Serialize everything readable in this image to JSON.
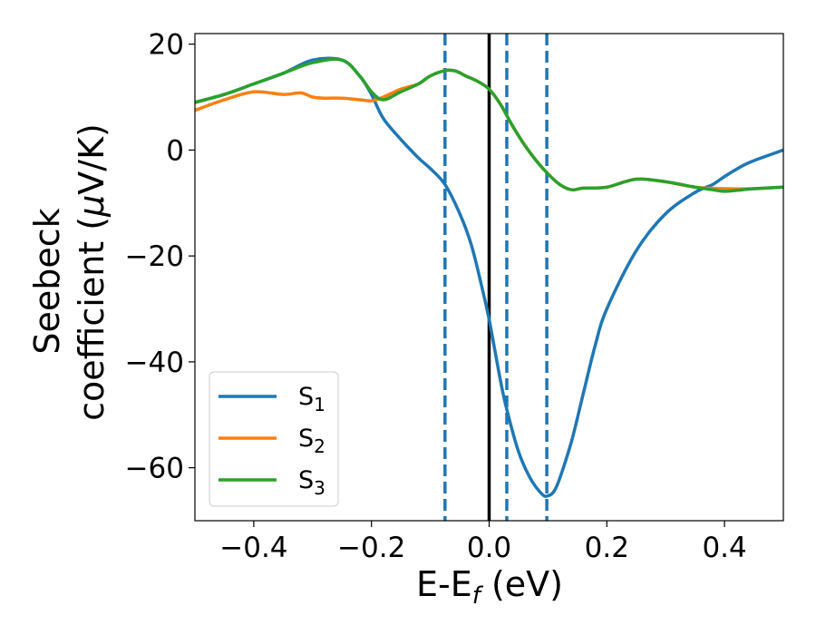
{
  "chart_data": {
    "type": "line",
    "xlabel": {
      "main": "E-E",
      "sub": "f",
      "unit": " (eV)"
    },
    "ylabel": {
      "line1": "Seebeck",
      "line2_prefix": "coefficient  (",
      "mu": "μ",
      "line2_suffix": "V/K)"
    },
    "xlim": [
      -0.5,
      0.5
    ],
    "ylim": [
      -70,
      22
    ],
    "xticks": [
      -0.4,
      -0.2,
      0.0,
      0.2,
      0.4
    ],
    "xtick_labels": [
      "−0.4",
      "−0.2",
      "0.0",
      "0.2",
      "0.4"
    ],
    "yticks": [
      -60,
      -40,
      -20,
      0,
      20
    ],
    "ytick_labels": [
      "−60",
      "−40",
      "−20",
      "0",
      "20"
    ],
    "vlines_solid": [
      {
        "x": 0.0,
        "color": "#000000"
      }
    ],
    "vlines_dashed": [
      {
        "x": -0.075,
        "color": "#1f77b4"
      },
      {
        "x": 0.03,
        "color": "#1f77b4"
      },
      {
        "x": 0.098,
        "color": "#1f77b4"
      }
    ],
    "legend_position": "lower-left",
    "series": [
      {
        "name": "S",
        "subscript": "1",
        "color": "#1f77b4",
        "x": [
          -0.5,
          -0.45,
          -0.4,
          -0.35,
          -0.3,
          -0.25,
          -0.22,
          -0.2,
          -0.18,
          -0.15,
          -0.12,
          -0.1,
          -0.075,
          -0.05,
          -0.03,
          -0.01,
          0.0,
          0.01,
          0.02,
          0.03,
          0.05,
          0.07,
          0.09,
          0.1,
          0.11,
          0.12,
          0.14,
          0.16,
          0.18,
          0.2,
          0.25,
          0.3,
          0.35,
          0.38,
          0.4,
          0.43,
          0.45,
          0.5
        ],
        "y": [
          9,
          10.5,
          12.5,
          14.5,
          17,
          17,
          14,
          10.5,
          6,
          2,
          -1.5,
          -3.5,
          -6.5,
          -12,
          -18,
          -27,
          -32,
          -38,
          -44,
          -49,
          -57,
          -62,
          -65,
          -65.3,
          -64.5,
          -62,
          -55,
          -46,
          -37,
          -30,
          -19,
          -12,
          -8,
          -6.5,
          -5,
          -3,
          -2,
          0
        ]
      },
      {
        "name": "S",
        "subscript": "2",
        "color": "#ff7f0e",
        "x": [
          -0.5,
          -0.45,
          -0.4,
          -0.35,
          -0.32,
          -0.3,
          -0.28,
          -0.25,
          -0.22,
          -0.2,
          -0.18,
          -0.15,
          -0.12,
          -0.1,
          -0.075,
          -0.06,
          -0.05,
          -0.04,
          -0.02,
          0.0,
          0.02,
          0.04,
          0.06,
          0.08,
          0.1,
          0.12,
          0.14,
          0.16,
          0.2,
          0.25,
          0.3,
          0.35,
          0.4,
          0.45,
          0.5
        ],
        "y": [
          7.5,
          9.5,
          11,
          10.5,
          10.8,
          10,
          9.8,
          9.8,
          9.5,
          9.3,
          10,
          11.5,
          12.5,
          14,
          15,
          15,
          14.6,
          14,
          13,
          11.5,
          8.5,
          4.5,
          1,
          -2,
          -4.5,
          -6.5,
          -7.5,
          -7.2,
          -7,
          -5.5,
          -6,
          -7,
          -7.3,
          -7.3,
          -7
        ]
      },
      {
        "name": "S",
        "subscript": "3",
        "color": "#2ca02c",
        "x": [
          -0.5,
          -0.45,
          -0.4,
          -0.35,
          -0.3,
          -0.25,
          -0.22,
          -0.2,
          -0.18,
          -0.15,
          -0.12,
          -0.1,
          -0.075,
          -0.06,
          -0.05,
          -0.04,
          -0.02,
          0.0,
          0.02,
          0.04,
          0.06,
          0.08,
          0.1,
          0.12,
          0.14,
          0.16,
          0.2,
          0.25,
          0.3,
          0.35,
          0.38,
          0.4,
          0.43,
          0.45,
          0.5
        ],
        "y": [
          9,
          10.5,
          12.5,
          14.5,
          16.5,
          17,
          14,
          11,
          9.5,
          11,
          12.5,
          14,
          15,
          15,
          14.6,
          14,
          13,
          11.5,
          8.5,
          4.5,
          1,
          -2,
          -4.5,
          -6.5,
          -7.5,
          -7.2,
          -7,
          -5.5,
          -6,
          -7,
          -7.5,
          -7.8,
          -7.5,
          -7.3,
          -7
        ]
      }
    ]
  }
}
